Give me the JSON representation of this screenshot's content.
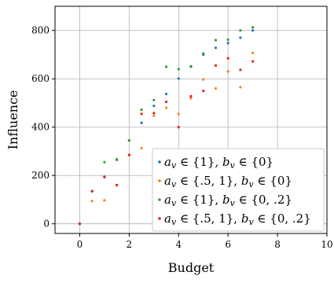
{
  "chart_data": {
    "type": "scatter",
    "xlabel": "Budget",
    "ylabel": "Influence",
    "xlim": [
      -1,
      10
    ],
    "ylim": [
      -40,
      900
    ],
    "xticks": [
      0,
      2,
      4,
      6,
      8,
      10
    ],
    "yticks": [
      0,
      200,
      400,
      600,
      800
    ],
    "grid": true,
    "legend_position": "bottom-right",
    "series": [
      {
        "name": "a_v ∈ {1}, b_v ∈ {0}",
        "color": "#1f77b4",
        "x": [
          0,
          0.5,
          1,
          1.5,
          2,
          2.5,
          3,
          3.5,
          4,
          4.5,
          5,
          5.5,
          6,
          6.5,
          7
        ],
        "y": [
          0,
          135,
          195,
          265,
          345,
          418,
          488,
          537,
          601,
          650,
          700,
          728,
          748,
          770,
          800
        ]
      },
      {
        "name": "a_v ∈ {.5, 1}, b_v ∈ {0}",
        "color": "#ff7f0e",
        "x": [
          0,
          0.5,
          1,
          1.5,
          2,
          2.5,
          3,
          3.5,
          4,
          4.5,
          5,
          5.5,
          6,
          6.5,
          7
        ],
        "y": [
          0,
          94,
          97,
          160,
          285,
          313,
          447,
          480,
          455,
          520,
          597,
          560,
          630,
          565,
          707
        ]
      },
      {
        "name": "a_v ∈ {1}, b_v ∈ {0, .2}",
        "color": "#2ca02c",
        "x": [
          0,
          0.5,
          1,
          1.5,
          2,
          2.5,
          3,
          3.5,
          4,
          4.5,
          5,
          5.5,
          6,
          6.5,
          7
        ],
        "y": [
          0,
          135,
          255,
          267,
          345,
          472,
          512,
          650,
          640,
          652,
          705,
          760,
          762,
          800,
          813
        ]
      },
      {
        "name": "a_v ∈ {.5, 1}, b_v ∈ {0, .2}",
        "color": "#d62728",
        "x": [
          0,
          0.5,
          1,
          1.5,
          2,
          2.5,
          3,
          3.5,
          4,
          4.5,
          5,
          5.5,
          6,
          6.5,
          7
        ],
        "y": [
          0,
          135,
          193,
          160,
          285,
          455,
          458,
          505,
          400,
          528,
          550,
          655,
          685,
          637,
          672
        ]
      }
    ]
  },
  "legend_labels": [
    {
      "a": "a",
      "sub_a": "v",
      "mid": " ∈ {1}, ",
      "b": "b",
      "sub_b": "v",
      "end": " ∈ {0}"
    },
    {
      "a": "a",
      "sub_a": "v",
      "mid": " ∈ {.5, 1}, ",
      "b": "b",
      "sub_b": "v",
      "end": " ∈ {0}"
    },
    {
      "a": "a",
      "sub_a": "v",
      "mid": " ∈ {1}, ",
      "b": "b",
      "sub_b": "v",
      "end": " ∈ {0, .2}"
    },
    {
      "a": "a",
      "sub_a": "v",
      "mid": " ∈ {.5, 1}, ",
      "b": "b",
      "sub_b": "v",
      "end": " ∈ {0, .2}"
    }
  ]
}
